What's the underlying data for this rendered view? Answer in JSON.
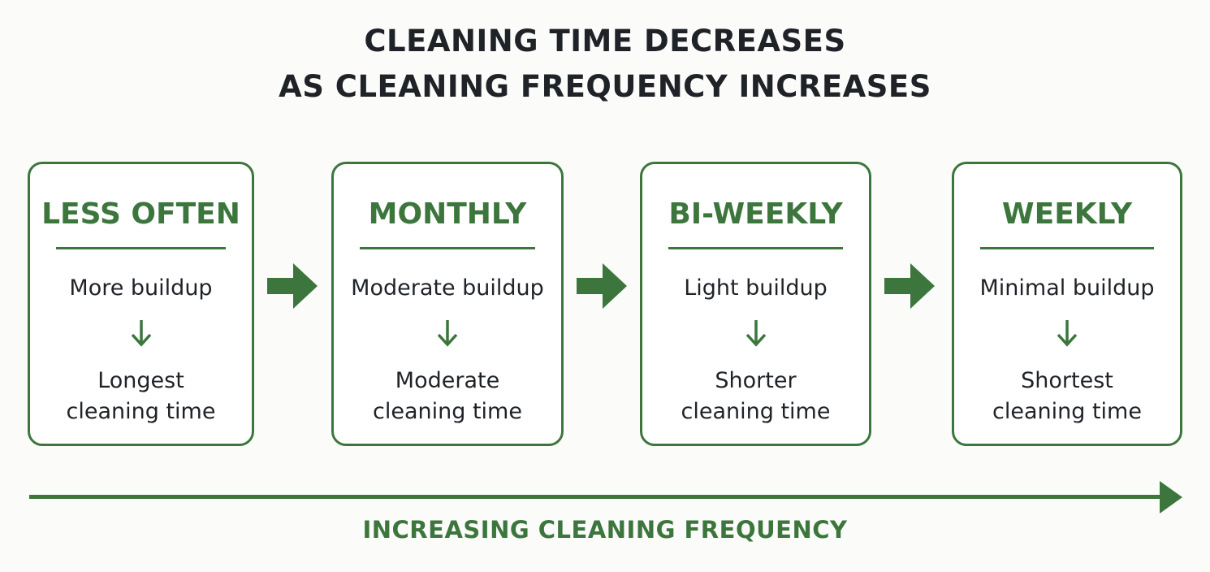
{
  "title": {
    "line1": "CLEANING TIME DECREASES",
    "line2": "AS CLEANING FREQUENCY INCREASES"
  },
  "cards": [
    {
      "frequency": "LESS OFTEN",
      "buildup": "More buildup",
      "time_line1": "Longest",
      "time_line2": "cleaning time"
    },
    {
      "frequency": "MONTHLY",
      "buildup": "Moderate buildup",
      "time_line1": "Moderate",
      "time_line2": "cleaning time"
    },
    {
      "frequency": "BI-WEEKLY",
      "buildup": "Light buildup",
      "time_line1": "Shorter",
      "time_line2": "cleaning time"
    },
    {
      "frequency": "WEEKLY",
      "buildup": "Minimal buildup",
      "time_line1": "Shortest",
      "time_line2": "cleaning time"
    }
  ],
  "axis": {
    "label": "INCREASING CLEANING FREQUENCY"
  },
  "colors": {
    "accent": "#3c763d",
    "text": "#1f2328",
    "background": "#fbfbfa"
  },
  "icons": {
    "step": "right-arrow-icon",
    "cause_effect": "down-arrow-icon",
    "axis": "long-right-arrow-icon"
  }
}
